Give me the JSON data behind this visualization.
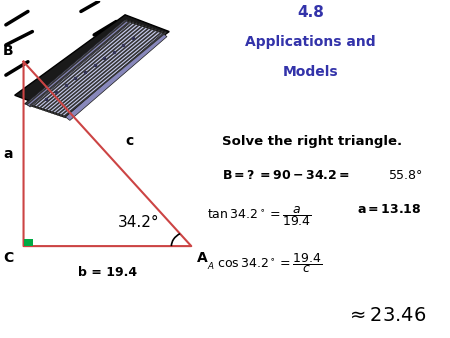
{
  "title_line1": "4.8",
  "title_line2": "Applications and",
  "title_line3": "Models",
  "title_color": "#3333aa",
  "bg_color": "#ffffff",
  "triangle_C": [
    0.05,
    0.27
  ],
  "triangle_A": [
    0.43,
    0.27
  ],
  "triangle_B": [
    0.05,
    0.82
  ],
  "right_angle_color": "#00aa44",
  "triangle_color": "#cc4444",
  "label_B": "B",
  "label_A": "A",
  "label_C": "C",
  "label_a": "a",
  "label_b": "b = 19.4",
  "label_c": "c",
  "angle_label": "34.2°",
  "text_color": "#000000"
}
